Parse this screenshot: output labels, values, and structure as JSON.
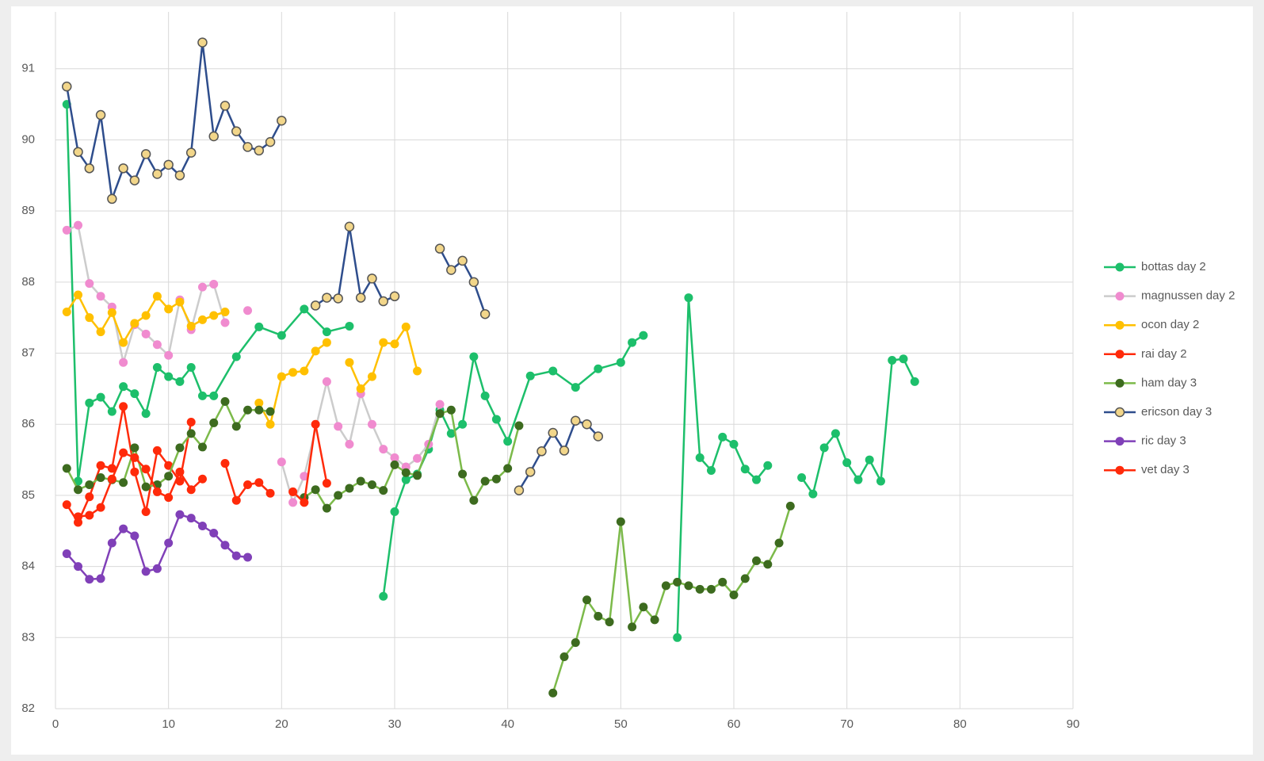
{
  "chart_data": {
    "type": "line",
    "xlim": [
      0,
      90
    ],
    "xticks": [
      0,
      10,
      20,
      30,
      40,
      50,
      60,
      70,
      80,
      90
    ],
    "ylim": [
      82,
      91.8
    ],
    "yticks": [
      82,
      83,
      84,
      85,
      86,
      87,
      88,
      89,
      90,
      91
    ],
    "grid": true,
    "legend": "right",
    "series": [
      {
        "name": "bottas day 2",
        "color": "#1dbf6b",
        "x": [
          1,
          2,
          3,
          4,
          5,
          6,
          7,
          8,
          9,
          10,
          11,
          12,
          13,
          14,
          16,
          18,
          20,
          22,
          24,
          26,
          null,
          29,
          30,
          31,
          32,
          33,
          34,
          35,
          36,
          37,
          38,
          39,
          40,
          42,
          44,
          46,
          48,
          50,
          51,
          52,
          null,
          55,
          56,
          57,
          58,
          59,
          60,
          61,
          62,
          63,
          null,
          66,
          67,
          68,
          69,
          70,
          71,
          72,
          73,
          74,
          75,
          76
        ],
        "values": [
          90.5,
          85.2,
          86.3,
          86.38,
          86.18,
          86.53,
          86.43,
          86.15,
          86.8,
          86.67,
          86.6,
          86.8,
          86.4,
          86.4,
          86.95,
          87.37,
          87.25,
          87.62,
          87.3,
          87.38,
          null,
          83.58,
          84.77,
          85.22,
          85.3,
          85.65,
          86.2,
          85.87,
          86.0,
          86.95,
          86.4,
          86.07,
          85.76,
          86.68,
          86.75,
          86.52,
          86.78,
          86.87,
          87.15,
          87.25,
          null,
          83.0,
          87.78,
          85.53,
          85.35,
          85.82,
          85.72,
          85.37,
          85.22,
          85.42,
          null,
          85.25,
          85.02,
          85.67,
          85.87,
          85.46,
          85.22,
          85.5,
          85.2,
          86.9,
          86.92,
          86.6
        ]
      },
      {
        "name": "magnussen day 2",
        "color": "#cccccc",
        "marker_color": "#f08bcf",
        "x": [
          1,
          2,
          3,
          4,
          5,
          6,
          7,
          8,
          9,
          10,
          11,
          12,
          13,
          14,
          15,
          null,
          17,
          null,
          20,
          21,
          22,
          24,
          25,
          26,
          27,
          28,
          29,
          30,
          31,
          32,
          33,
          34
        ],
        "values": [
          88.73,
          88.8,
          87.98,
          87.8,
          87.65,
          86.87,
          87.4,
          87.27,
          87.12,
          86.97,
          87.75,
          87.33,
          87.93,
          87.97,
          87.43,
          null,
          87.6,
          null,
          85.47,
          84.9,
          85.27,
          86.6,
          85.97,
          85.72,
          86.43,
          86.0,
          85.65,
          85.53,
          85.4,
          85.52,
          85.72,
          86.28
        ]
      },
      {
        "name": "ocon day 2",
        "color": "#ffc000",
        "x": [
          1,
          2,
          3,
          4,
          5,
          6,
          7,
          8,
          9,
          10,
          11,
          12,
          13,
          14,
          15,
          null,
          18,
          19,
          20,
          21,
          22,
          23,
          24,
          null,
          26,
          27,
          28,
          29,
          30,
          31,
          32
        ],
        "values": [
          87.58,
          87.82,
          87.5,
          87.3,
          87.57,
          87.15,
          87.42,
          87.53,
          87.8,
          87.62,
          87.72,
          87.38,
          87.47,
          87.53,
          87.58,
          null,
          86.3,
          86.0,
          86.67,
          86.73,
          86.75,
          87.03,
          87.15,
          null,
          86.87,
          86.5,
          86.67,
          87.15,
          87.13,
          87.37,
          86.75
        ]
      },
      {
        "name": "rai day 2",
        "color": "#ff2a0a",
        "x": [
          1,
          2,
          3,
          4,
          5,
          6,
          7,
          8,
          9,
          10,
          11,
          12
        ],
        "values": [
          84.87,
          84.62,
          84.98,
          85.42,
          85.38,
          86.25,
          85.33,
          84.77,
          85.63,
          85.42,
          85.2,
          86.03
        ]
      },
      {
        "name": "ham day 3",
        "color": "#7cba4a",
        "marker_color": "#3d6b1f",
        "x": [
          1,
          2,
          3,
          4,
          5,
          6,
          7,
          8,
          9,
          10,
          11,
          12,
          13,
          14,
          15,
          16,
          17,
          18,
          19,
          null,
          22,
          23,
          24,
          25,
          26,
          27,
          28,
          29,
          30,
          31,
          32,
          34,
          35,
          36,
          37,
          38,
          39,
          40,
          41,
          null,
          44,
          45,
          46,
          47,
          48,
          49,
          50,
          51,
          52,
          53,
          54,
          55,
          56,
          57,
          58,
          59,
          60,
          61,
          62,
          63,
          64,
          65
        ],
        "values": [
          85.38,
          85.08,
          85.15,
          85.25,
          85.22,
          85.18,
          85.67,
          85.12,
          85.15,
          85.27,
          85.67,
          85.87,
          85.68,
          86.02,
          86.32,
          85.97,
          86.2,
          86.2,
          86.18,
          null,
          84.97,
          85.08,
          84.82,
          85.0,
          85.1,
          85.2,
          85.15,
          85.07,
          85.43,
          85.32,
          85.28,
          86.15,
          86.2,
          85.3,
          84.93,
          85.2,
          85.23,
          85.38,
          85.98,
          null,
          82.22,
          82.73,
          82.93,
          83.53,
          83.3,
          83.22,
          84.63,
          83.15,
          83.43,
          83.25,
          83.73,
          83.78,
          83.73,
          83.68,
          83.68,
          83.78,
          83.6,
          83.83,
          84.08,
          84.03,
          84.33,
          84.85
        ]
      },
      {
        "name": "ericson day 3",
        "color": "#2e4d8c",
        "marker_color": "#f2d68a",
        "marker_edge_color": "#555555",
        "x": [
          1,
          2,
          3,
          4,
          5,
          6,
          7,
          8,
          9,
          10,
          11,
          12,
          13,
          14,
          15,
          16,
          17,
          18,
          19,
          20,
          null,
          23,
          24,
          25,
          26,
          27,
          28,
          29,
          30,
          null,
          34,
          35,
          36,
          37,
          38,
          null,
          41,
          42,
          43,
          44,
          45,
          46,
          47,
          48
        ],
        "values": [
          90.75,
          89.83,
          89.6,
          90.35,
          89.17,
          89.6,
          89.43,
          89.8,
          89.52,
          89.65,
          89.5,
          89.82,
          91.37,
          90.05,
          90.48,
          90.12,
          89.9,
          89.85,
          89.97,
          90.27,
          null,
          87.67,
          87.78,
          87.77,
          88.78,
          87.78,
          88.05,
          87.73,
          87.8,
          null,
          88.47,
          88.17,
          88.3,
          88.0,
          87.55,
          null,
          85.07,
          85.33,
          85.62,
          85.88,
          85.63,
          86.05,
          86.0,
          85.83
        ]
      },
      {
        "name": "ric day 3",
        "color": "#8040b8",
        "x": [
          1,
          2,
          3,
          4,
          5,
          6,
          7,
          8,
          9,
          10,
          11,
          12,
          13,
          14,
          15,
          16,
          17
        ],
        "values": [
          84.18,
          84.0,
          83.82,
          83.83,
          84.33,
          84.53,
          84.43,
          83.93,
          83.97,
          84.33,
          84.73,
          84.68,
          84.57,
          84.47,
          84.3,
          84.15,
          84.13
        ]
      },
      {
        "name": "vet day 3",
        "color": "#ff2a0a",
        "x": [
          2,
          3,
          4,
          5,
          6,
          7,
          8,
          9,
          10,
          11,
          12,
          13,
          null,
          15,
          16,
          17,
          18,
          19,
          null,
          21,
          22,
          23,
          24
        ],
        "values": [
          84.7,
          84.72,
          84.83,
          85.23,
          85.6,
          85.53,
          85.37,
          85.05,
          84.97,
          85.33,
          85.08,
          85.23,
          null,
          85.45,
          84.93,
          85.15,
          85.18,
          85.03,
          null,
          85.05,
          84.9,
          86.0,
          85.17
        ]
      }
    ]
  }
}
